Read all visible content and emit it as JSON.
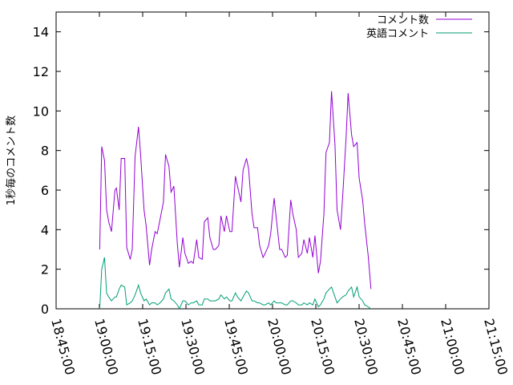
{
  "chart_data": {
    "type": "line",
    "ylabel": "1秒毎のコメント数",
    "xlabel": "",
    "ylim": [
      0,
      15
    ],
    "xlim": [
      "18:45:00",
      "21:15:00"
    ],
    "grid": false,
    "legend_position": "top-right",
    "y_ticks": [
      "0",
      "2",
      "4",
      "6",
      "8",
      "10",
      "12",
      "14"
    ],
    "x_ticks": [
      "18:45:00",
      "19:00:00",
      "19:15:00",
      "19:30:00",
      "19:45:00",
      "20:00:00",
      "20:15:00",
      "20:30:00",
      "20:45:00",
      "21:00:00",
      "21:15:00"
    ],
    "series": [
      {
        "name": "コメント数",
        "color": "#9400d3",
        "points": [
          [
            "19:00:06",
            3.0
          ],
          [
            "19:00:49",
            8.2
          ],
          [
            "19:01:47",
            7.5
          ],
          [
            "19:02:30",
            5.0
          ],
          [
            "19:03:14",
            4.4
          ],
          [
            "19:04:12",
            3.9
          ],
          [
            "19:05:24",
            6.0
          ],
          [
            "19:05:53",
            6.1
          ],
          [
            "19:06:51",
            5.0
          ],
          [
            "19:07:34",
            7.6
          ],
          [
            "19:08:46",
            7.6
          ],
          [
            "19:09:29",
            3.1
          ],
          [
            "19:10:41",
            2.5
          ],
          [
            "19:11:24",
            3.0
          ],
          [
            "19:12:22",
            7.7
          ],
          [
            "19:13:34",
            9.2
          ],
          [
            "19:14:17",
            7.8
          ],
          [
            "19:15:29",
            5.0
          ],
          [
            "19:16:12",
            4.2
          ],
          [
            "19:17:24",
            2.2
          ],
          [
            "19:18:07",
            3.0
          ],
          [
            "19:19:19",
            3.9
          ],
          [
            "19:20:02",
            3.8
          ],
          [
            "19:21:00",
            4.5
          ],
          [
            "19:22:12",
            5.4
          ],
          [
            "19:22:55",
            7.8
          ],
          [
            "19:24:07",
            7.2
          ],
          [
            "19:24:50",
            5.9
          ],
          [
            "19:25:48",
            6.2
          ],
          [
            "19:27:00",
            3.3
          ],
          [
            "19:27:43",
            2.1
          ],
          [
            "19:28:55",
            3.6
          ],
          [
            "19:29:38",
            2.8
          ],
          [
            "19:30:50",
            2.3
          ],
          [
            "19:31:48",
            2.4
          ],
          [
            "19:32:31",
            2.3
          ],
          [
            "19:33:43",
            3.5
          ],
          [
            "19:34:26",
            2.6
          ],
          [
            "19:35:38",
            2.5
          ],
          [
            "19:36:21",
            4.4
          ],
          [
            "19:37:33",
            4.6
          ],
          [
            "19:38:16",
            3.6
          ],
          [
            "19:39:28",
            3.0
          ],
          [
            "19:40:11",
            3.0
          ],
          [
            "19:41:23",
            3.2
          ],
          [
            "19:42:06",
            4.7
          ],
          [
            "19:43:18",
            3.9
          ],
          [
            "19:44:01",
            4.7
          ],
          [
            "19:45:13",
            3.9
          ],
          [
            "19:45:56",
            3.9
          ],
          [
            "19:47:08",
            6.7
          ],
          [
            "19:47:51",
            6.2
          ],
          [
            "19:49:03",
            5.4
          ],
          [
            "19:49:46",
            7.0
          ],
          [
            "19:50:58",
            7.6
          ],
          [
            "19:51:41",
            7.1
          ],
          [
            "19:52:53",
            4.8
          ],
          [
            "19:53:36",
            4.1
          ],
          [
            "19:54:48",
            4.1
          ],
          [
            "19:55:31",
            3.2
          ],
          [
            "19:56:43",
            2.6
          ],
          [
            "19:57:26",
            2.8
          ],
          [
            "19:58:38",
            3.2
          ],
          [
            "19:59:21",
            3.8
          ],
          [
            "20:00:33",
            5.6
          ],
          [
            "20:01:16",
            4.6
          ],
          [
            "20:02:28",
            3.0
          ],
          [
            "20:03:11",
            3.0
          ],
          [
            "20:04:23",
            2.6
          ],
          [
            "20:05:06",
            2.7
          ],
          [
            "20:06:18",
            5.5
          ],
          [
            "20:07:01",
            4.8
          ],
          [
            "20:08:13",
            4.0
          ],
          [
            "20:08:56",
            2.6
          ],
          [
            "20:10:08",
            2.8
          ],
          [
            "20:10:51",
            3.5
          ],
          [
            "20:12:03",
            2.8
          ],
          [
            "20:12:46",
            3.6
          ],
          [
            "20:13:58",
            2.6
          ],
          [
            "20:14:41",
            3.7
          ],
          [
            "20:15:53",
            1.8
          ],
          [
            "20:16:36",
            2.4
          ],
          [
            "20:17:48",
            4.8
          ],
          [
            "20:18:31",
            7.9
          ],
          [
            "20:19:43",
            8.4
          ],
          [
            "20:20:26",
            11.0
          ],
          [
            "20:21:38",
            8.3
          ],
          [
            "20:22:21",
            5.0
          ],
          [
            "20:23:33",
            4.0
          ],
          [
            "20:24:16",
            5.6
          ],
          [
            "20:25:28",
            8.6
          ],
          [
            "20:26:11",
            10.9
          ],
          [
            "20:27:23",
            8.8
          ],
          [
            "20:28:06",
            8.2
          ],
          [
            "20:29:18",
            8.4
          ],
          [
            "20:30:01",
            6.6
          ],
          [
            "20:31:13",
            5.5
          ],
          [
            "20:31:56",
            4.3
          ],
          [
            "20:33:08",
            2.7
          ],
          [
            "20:34:06",
            1.0
          ]
        ]
      },
      {
        "name": "英語コメント",
        "color": "#009e73",
        "points": [
          [
            "19:00:06",
            0.0
          ],
          [
            "19:00:49",
            2.0
          ],
          [
            "19:01:47",
            2.6
          ],
          [
            "19:02:30",
            0.8
          ],
          [
            "19:03:14",
            0.6
          ],
          [
            "19:04:12",
            0.4
          ],
          [
            "19:05:24",
            0.6
          ],
          [
            "19:05:53",
            0.6
          ],
          [
            "19:06:51",
            1.0
          ],
          [
            "19:07:34",
            1.2
          ],
          [
            "19:08:46",
            1.1
          ],
          [
            "19:09:29",
            0.2
          ],
          [
            "19:10:41",
            0.3
          ],
          [
            "19:11:24",
            0.4
          ],
          [
            "19:12:22",
            0.7
          ],
          [
            "19:13:34",
            1.2
          ],
          [
            "19:14:17",
            0.8
          ],
          [
            "19:15:29",
            0.4
          ],
          [
            "19:16:12",
            0.5
          ],
          [
            "19:17:24",
            0.2
          ],
          [
            "19:18:07",
            0.3
          ],
          [
            "19:19:19",
            0.3
          ],
          [
            "19:20:02",
            0.2
          ],
          [
            "19:21:00",
            0.3
          ],
          [
            "19:22:12",
            0.5
          ],
          [
            "19:22:55",
            0.8
          ],
          [
            "19:24:07",
            1.0
          ],
          [
            "19:24:50",
            0.5
          ],
          [
            "19:25:48",
            0.4
          ],
          [
            "19:27:00",
            0.2
          ],
          [
            "19:27:43",
            0.0
          ],
          [
            "19:28:55",
            0.4
          ],
          [
            "19:29:38",
            0.4
          ],
          [
            "19:30:50",
            0.2
          ],
          [
            "19:31:48",
            0.3
          ],
          [
            "19:32:31",
            0.3
          ],
          [
            "19:33:43",
            0.4
          ],
          [
            "19:34:26",
            0.2
          ],
          [
            "19:35:38",
            0.2
          ],
          [
            "19:36:21",
            0.5
          ],
          [
            "19:37:33",
            0.5
          ],
          [
            "19:38:16",
            0.4
          ],
          [
            "19:39:28",
            0.4
          ],
          [
            "19:40:11",
            0.4
          ],
          [
            "19:41:23",
            0.5
          ],
          [
            "19:42:06",
            0.7
          ],
          [
            "19:43:18",
            0.5
          ],
          [
            "19:44:01",
            0.6
          ],
          [
            "19:45:13",
            0.4
          ],
          [
            "19:45:56",
            0.4
          ],
          [
            "19:47:08",
            0.8
          ],
          [
            "19:47:51",
            0.6
          ],
          [
            "19:49:03",
            0.4
          ],
          [
            "19:49:46",
            0.6
          ],
          [
            "19:50:58",
            0.9
          ],
          [
            "19:51:41",
            0.8
          ],
          [
            "19:52:53",
            0.4
          ],
          [
            "19:53:36",
            0.4
          ],
          [
            "19:54:48",
            0.3
          ],
          [
            "19:55:31",
            0.3
          ],
          [
            "19:56:43",
            0.2
          ],
          [
            "19:57:26",
            0.2
          ],
          [
            "19:58:38",
            0.3
          ],
          [
            "19:59:21",
            0.2
          ],
          [
            "20:00:33",
            0.4
          ],
          [
            "20:01:16",
            0.3
          ],
          [
            "20:02:28",
            0.3
          ],
          [
            "20:03:11",
            0.3
          ],
          [
            "20:04:23",
            0.2
          ],
          [
            "20:05:06",
            0.2
          ],
          [
            "20:06:18",
            0.4
          ],
          [
            "20:07:01",
            0.4
          ],
          [
            "20:08:13",
            0.3
          ],
          [
            "20:08:56",
            0.2
          ],
          [
            "20:10:08",
            0.2
          ],
          [
            "20:10:51",
            0.3
          ],
          [
            "20:12:03",
            0.2
          ],
          [
            "20:12:46",
            0.3
          ],
          [
            "20:13:58",
            0.2
          ],
          [
            "20:14:41",
            0.5
          ],
          [
            "20:15:53",
            0.1
          ],
          [
            "20:16:36",
            0.2
          ],
          [
            "20:17:48",
            0.5
          ],
          [
            "20:18:31",
            0.8
          ],
          [
            "20:19:43",
            1.0
          ],
          [
            "20:20:26",
            1.1
          ],
          [
            "20:21:38",
            0.6
          ],
          [
            "20:22:21",
            0.3
          ],
          [
            "20:23:33",
            0.5
          ],
          [
            "20:24:16",
            0.6
          ],
          [
            "20:25:28",
            0.7
          ],
          [
            "20:26:11",
            0.9
          ],
          [
            "20:27:23",
            1.1
          ],
          [
            "20:28:06",
            0.6
          ],
          [
            "20:29:18",
            1.1
          ],
          [
            "20:30:01",
            0.6
          ],
          [
            "20:31:13",
            0.4
          ],
          [
            "20:31:56",
            0.2
          ],
          [
            "20:33:08",
            0.1
          ],
          [
            "20:34:06",
            0.0
          ]
        ]
      }
    ]
  }
}
